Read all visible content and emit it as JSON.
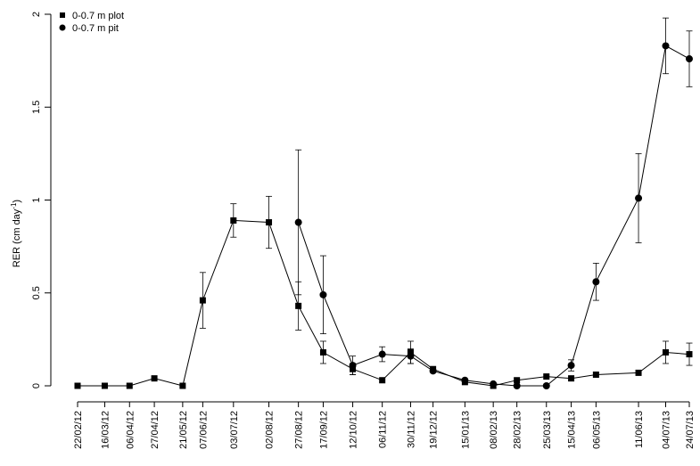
{
  "chart_data": {
    "type": "line",
    "title": "",
    "xlabel": "",
    "ylabel": "RER (cm day",
    "ylabel_sup": "-1",
    "ylabel_close": ")",
    "ylim": [
      0,
      2
    ],
    "yticks": [
      {
        "value": 0,
        "label": "0"
      },
      {
        "value": 0.5,
        "label": "0.5"
      },
      {
        "value": 1,
        "label": "1"
      },
      {
        "value": 1.5,
        "label": "1.5"
      },
      {
        "value": 2,
        "label": "2"
      }
    ],
    "x_dates": [
      "2012-02-22",
      "2012-03-16",
      "2012-04-06",
      "2012-04-27",
      "2012-05-21",
      "2012-06-07",
      "2012-07-03",
      "2012-08-02",
      "2012-08-27",
      "2012-09-17",
      "2012-10-12",
      "2012-11-06",
      "2012-11-30",
      "2012-12-19",
      "2013-01-15",
      "2013-02-08",
      "2013-02-28",
      "2013-03-25",
      "2013-04-15",
      "2013-05-06",
      "2013-06-11",
      "2013-07-04",
      "2013-07-24"
    ],
    "x_labels": [
      "22/02/12",
      "16/03/12",
      "06/04/12",
      "27/04/12",
      "21/05/12",
      "07/06/12",
      "03/07/12",
      "02/08/12",
      "27/08/12",
      "17/09/12",
      "12/10/12",
      "06/11/12",
      "30/11/12",
      "19/12/12",
      "15/01/13",
      "08/02/13",
      "28/02/13",
      "25/03/13",
      "15/04/13",
      "06/05/13",
      "11/06/13",
      "04/07/13",
      "24/07/13"
    ],
    "legend_position": "top-left",
    "series": [
      {
        "name": "0-0.7 m plot",
        "marker": "square",
        "x": [
          "2012-02-22",
          "2012-03-16",
          "2012-04-06",
          "2012-04-27",
          "2012-05-21",
          "2012-06-07",
          "2012-07-03",
          "2012-08-02",
          "2012-08-27",
          "2012-09-17",
          "2012-10-12",
          "2012-11-06",
          "2012-11-30",
          "2012-12-19",
          "2013-01-15",
          "2013-02-08",
          "2013-02-28",
          "2013-03-25",
          "2013-04-15",
          "2013-05-06",
          "2013-06-11",
          "2013-07-04",
          "2013-07-24"
        ],
        "y": [
          0.0,
          0.0,
          0.0,
          0.04,
          0.0,
          0.46,
          0.89,
          0.88,
          0.43,
          0.18,
          0.09,
          0.03,
          0.18,
          0.09,
          0.02,
          0.0,
          0.03,
          0.05,
          0.04,
          0.06,
          0.07,
          0.18,
          0.17
        ],
        "err": [
          0,
          0,
          0,
          0,
          0,
          0.15,
          0.09,
          0.14,
          0.13,
          0.06,
          0.03,
          0,
          0.06,
          0,
          0,
          0,
          0,
          0,
          0,
          0,
          0,
          0.06,
          0.06
        ]
      },
      {
        "name": "0-0.7 m pit",
        "marker": "circle",
        "x": [
          "2012-08-27",
          "2012-09-17",
          "2012-10-12",
          "2012-11-06",
          "2012-11-30",
          "2012-12-19",
          "2013-01-15",
          "2013-02-08",
          "2013-02-28",
          "2013-03-25",
          "2013-04-15",
          "2013-05-06",
          "2013-06-11",
          "2013-07-04",
          "2013-07-24"
        ],
        "y": [
          0.88,
          0.49,
          0.11,
          0.17,
          0.16,
          0.08,
          0.03,
          0.01,
          0.0,
          0.0,
          0.11,
          0.56,
          1.01,
          1.83,
          1.76
        ],
        "err": [
          0.39,
          0.21,
          0.05,
          0.04,
          0.04,
          0,
          0,
          0,
          0,
          0,
          0.03,
          0.1,
          0.24,
          0.15,
          0.15
        ]
      }
    ]
  }
}
